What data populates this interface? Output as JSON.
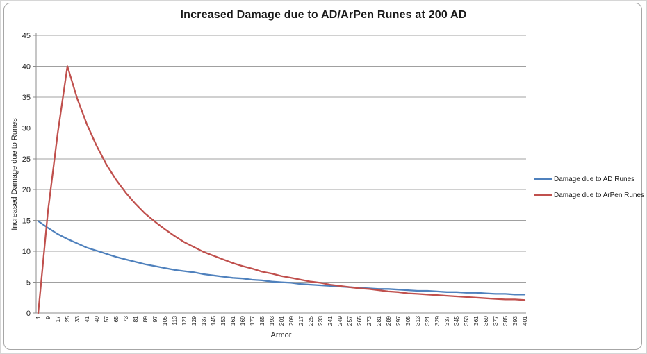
{
  "frame": {
    "border_color": "#a6a6a6",
    "background": "#ffffff"
  },
  "chart_data": {
    "type": "line",
    "title": "Increased Damage due to AD/ArPen Runes at 200 AD",
    "xlabel": "Armor",
    "ylabel": "Increased Damage due to Runes",
    "ylim": [
      0,
      45
    ],
    "ytick_step": 5,
    "grid": "horizontal",
    "legend_position": "right",
    "categories": [
      1,
      9,
      17,
      25,
      33,
      41,
      49,
      57,
      65,
      73,
      81,
      89,
      97,
      105,
      113,
      121,
      129,
      137,
      145,
      153,
      161,
      169,
      177,
      185,
      193,
      201,
      209,
      217,
      225,
      233,
      241,
      249,
      257,
      265,
      273,
      281,
      289,
      297,
      305,
      313,
      321,
      329,
      337,
      345,
      353,
      361,
      369,
      377,
      385,
      393,
      401
    ],
    "series": [
      {
        "name": "Damage due to AD Runes",
        "color": "#4F81BD",
        "values": [
          14.9,
          13.8,
          12.8,
          12.0,
          11.3,
          10.6,
          10.1,
          9.6,
          9.1,
          8.7,
          8.3,
          7.9,
          7.6,
          7.3,
          7.0,
          6.8,
          6.6,
          6.3,
          6.1,
          5.9,
          5.7,
          5.6,
          5.4,
          5.3,
          5.1,
          5.0,
          4.9,
          4.7,
          4.6,
          4.5,
          4.4,
          4.3,
          4.2,
          4.1,
          4.0,
          3.9,
          3.9,
          3.8,
          3.7,
          3.6,
          3.6,
          3.5,
          3.4,
          3.4,
          3.3,
          3.3,
          3.2,
          3.1,
          3.1,
          3.0,
          3.0
        ]
      },
      {
        "name": "Damage due to ArPen Runes",
        "color": "#C0504D",
        "values": [
          0,
          16.5,
          29.1,
          40.0,
          34.8,
          30.6,
          27.1,
          24.1,
          21.6,
          19.5,
          17.7,
          16.1,
          14.8,
          13.6,
          12.5,
          11.5,
          10.7,
          9.9,
          9.3,
          8.7,
          8.1,
          7.6,
          7.2,
          6.7,
          6.4,
          6.0,
          5.7,
          5.4,
          5.1,
          4.9,
          4.6,
          4.4,
          4.2,
          4.0,
          3.9,
          3.7,
          3.5,
          3.4,
          3.2,
          3.1,
          3.0,
          2.9,
          2.8,
          2.7,
          2.6,
          2.5,
          2.4,
          2.3,
          2.2,
          2.2,
          2.1
        ]
      }
    ],
    "colors": {
      "gridline": "#a0a0a0",
      "axis": "#8c8c8c",
      "tick_text": "#262626",
      "title_text": "#1a1a1a"
    }
  }
}
